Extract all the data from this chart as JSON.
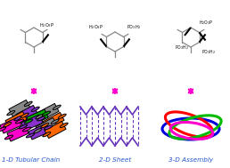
{
  "background_color": "#ffffff",
  "arrow_color": "#ff00cc",
  "label1": "1-D Tubular Chain",
  "label2": "2-D Sheet",
  "label3": "3-D Assembly",
  "label_color": "#2255cc",
  "label_fontsize": 5.2,
  "sheet_color": "#6633bb",
  "tube_positions": [
    [
      "#888888",
      18,
      32,
      -28
    ],
    [
      "#8833cc",
      26,
      26,
      -28
    ],
    [
      "#ff6600",
      14,
      22,
      -28
    ],
    [
      "#ff00cc",
      8,
      16,
      -24
    ],
    [
      "#888888",
      52,
      26,
      -28
    ],
    [
      "#00aa00",
      40,
      22,
      -24
    ],
    [
      "#8833cc",
      34,
      16,
      -24
    ],
    [
      "#ff6600",
      58,
      18,
      -28
    ],
    [
      "#888888",
      50,
      12,
      -28
    ],
    [
      "#ff00cc",
      18,
      8,
      -24
    ],
    [
      "#8833cc",
      42,
      8,
      -24
    ],
    [
      "#ff6600",
      60,
      8,
      -28
    ]
  ],
  "ring_colors": [
    "#0000dd",
    "#ff0000",
    "#00bb00",
    "#ff00cc"
  ],
  "ring_specs": [
    [
      0,
      2,
      32,
      12,
      0
    ],
    [
      -2,
      -3,
      28,
      11,
      20
    ],
    [
      5,
      0,
      30,
      11,
      -15
    ],
    [
      1,
      4,
      24,
      9,
      8
    ]
  ]
}
